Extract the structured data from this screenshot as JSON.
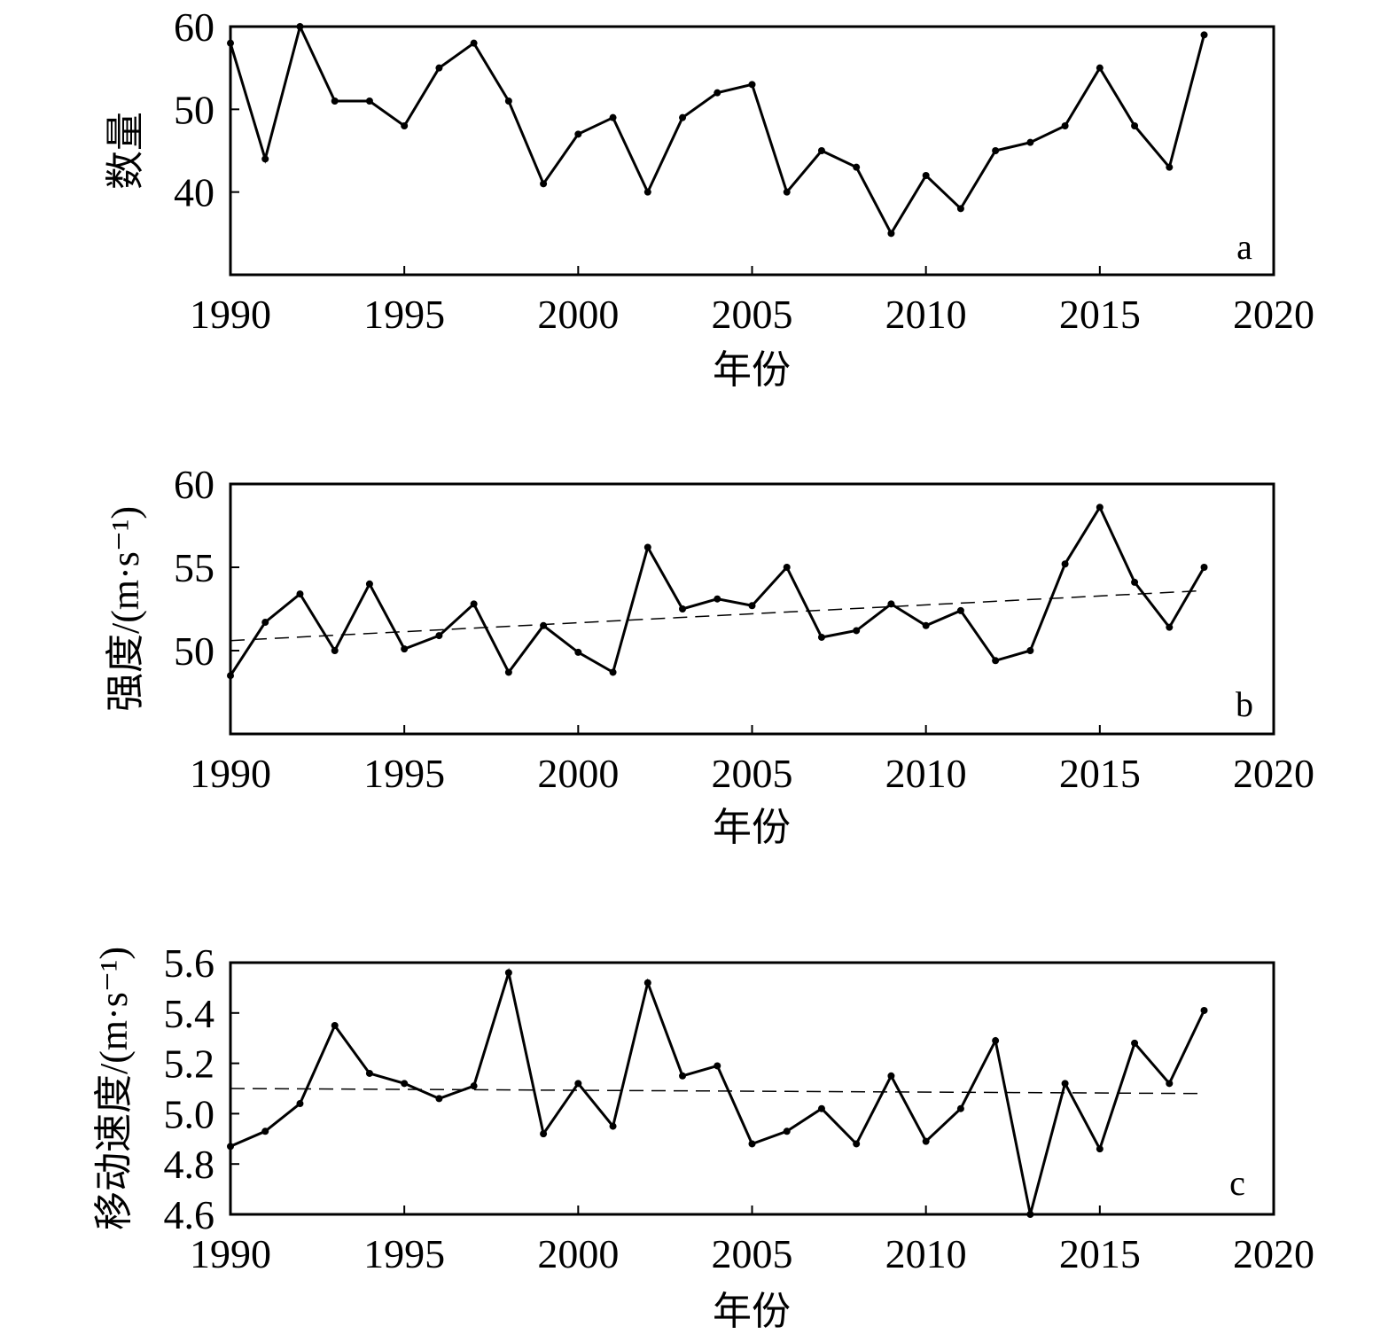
{
  "chart_data": [
    {
      "type": "line",
      "panel_label": "a",
      "xlabel": "年份",
      "ylabel": "数量",
      "xlim": [
        1990,
        2020
      ],
      "ylim": [
        30,
        60
      ],
      "x_ticks": [
        1990,
        1995,
        2000,
        2005,
        2010,
        2015,
        2020
      ],
      "y_ticks": [
        40,
        50,
        60
      ],
      "x_tick_labels": [
        "1990",
        "1995",
        "2000",
        "2005",
        "2010",
        "2015",
        "2020"
      ],
      "y_tick_labels": [
        "40",
        "50",
        "60"
      ],
      "grid": false,
      "series": [
        {
          "x": [
            1990,
            1991,
            1992,
            1993,
            1994,
            1995,
            1996,
            1997,
            1998,
            1999,
            2000,
            2001,
            2002,
            2003,
            2004,
            2005,
            2006,
            2007,
            2008,
            2009,
            2010,
            2011,
            2012,
            2013,
            2014,
            2015,
            2016,
            2017,
            2018
          ],
          "values": [
            58,
            44,
            60,
            51,
            51,
            48,
            55,
            58,
            51,
            41,
            47,
            49,
            40,
            49,
            52,
            53,
            40,
            45,
            43,
            35,
            42,
            38,
            45,
            46,
            48,
            55,
            48,
            43,
            59
          ]
        }
      ]
    },
    {
      "type": "line",
      "panel_label": "b",
      "xlabel": "年份",
      "ylabel": "强度/(m·s⁻¹)",
      "xlim": [
        1990,
        2020
      ],
      "ylim": [
        45,
        60
      ],
      "x_ticks": [
        1990,
        1995,
        2000,
        2005,
        2010,
        2015,
        2020
      ],
      "y_ticks": [
        50,
        55,
        60
      ],
      "x_tick_labels": [
        "1990",
        "1995",
        "2000",
        "2005",
        "2010",
        "2015",
        "2020"
      ],
      "y_tick_labels": [
        "50",
        "55",
        "60"
      ],
      "grid": false,
      "series": [
        {
          "x": [
            1990,
            1991,
            1992,
            1993,
            1994,
            1995,
            1996,
            1997,
            1998,
            1999,
            2000,
            2001,
            2002,
            2003,
            2004,
            2005,
            2006,
            2007,
            2008,
            2009,
            2010,
            2011,
            2012,
            2013,
            2014,
            2015,
            2016,
            2017,
            2018
          ],
          "values": [
            48.5,
            51.7,
            53.4,
            50.0,
            54.0,
            50.1,
            50.9,
            52.8,
            48.7,
            51.5,
            49.9,
            48.7,
            56.2,
            52.5,
            53.1,
            52.7,
            55.0,
            50.8,
            51.2,
            52.8,
            51.5,
            52.4,
            49.4,
            50.0,
            55.2,
            58.6,
            54.1,
            51.4,
            55.0
          ]
        },
        {
          "x": [
            1990,
            2018
          ],
          "values": [
            50.6,
            53.6
          ],
          "style": "dashed"
        }
      ]
    },
    {
      "type": "line",
      "panel_label": "c",
      "xlabel": "年份",
      "ylabel": "移动速度/(m·s⁻¹)",
      "xlim": [
        1990,
        2020
      ],
      "ylim": [
        4.6,
        5.6
      ],
      "x_ticks": [
        1990,
        1995,
        2000,
        2005,
        2010,
        2015,
        2020
      ],
      "y_ticks": [
        4.6,
        4.8,
        5.0,
        5.2,
        5.4,
        5.6
      ],
      "x_tick_labels": [
        "1990",
        "1995",
        "2000",
        "2005",
        "2010",
        "2015",
        "2020"
      ],
      "y_tick_labels": [
        "4.6",
        "4.8",
        "5.0",
        "5.2",
        "5.4",
        "5.6"
      ],
      "grid": false,
      "series": [
        {
          "x": [
            1990,
            1991,
            1992,
            1993,
            1994,
            1995,
            1996,
            1997,
            1998,
            1999,
            2000,
            2001,
            2002,
            2003,
            2004,
            2005,
            2006,
            2007,
            2008,
            2009,
            2010,
            2011,
            2012,
            2013,
            2014,
            2015,
            2016,
            2017,
            2018
          ],
          "values": [
            4.87,
            4.93,
            5.04,
            5.35,
            5.16,
            5.12,
            5.06,
            5.11,
            5.56,
            4.92,
            5.12,
            4.95,
            5.52,
            5.15,
            5.19,
            4.88,
            4.93,
            5.02,
            4.88,
            5.15,
            4.89,
            5.02,
            5.29,
            4.6,
            5.12,
            4.86,
            5.28,
            5.12,
            5.41
          ]
        },
        {
          "x": [
            1990,
            2018
          ],
          "values": [
            5.1,
            5.08
          ],
          "style": "dashed"
        }
      ]
    }
  ]
}
